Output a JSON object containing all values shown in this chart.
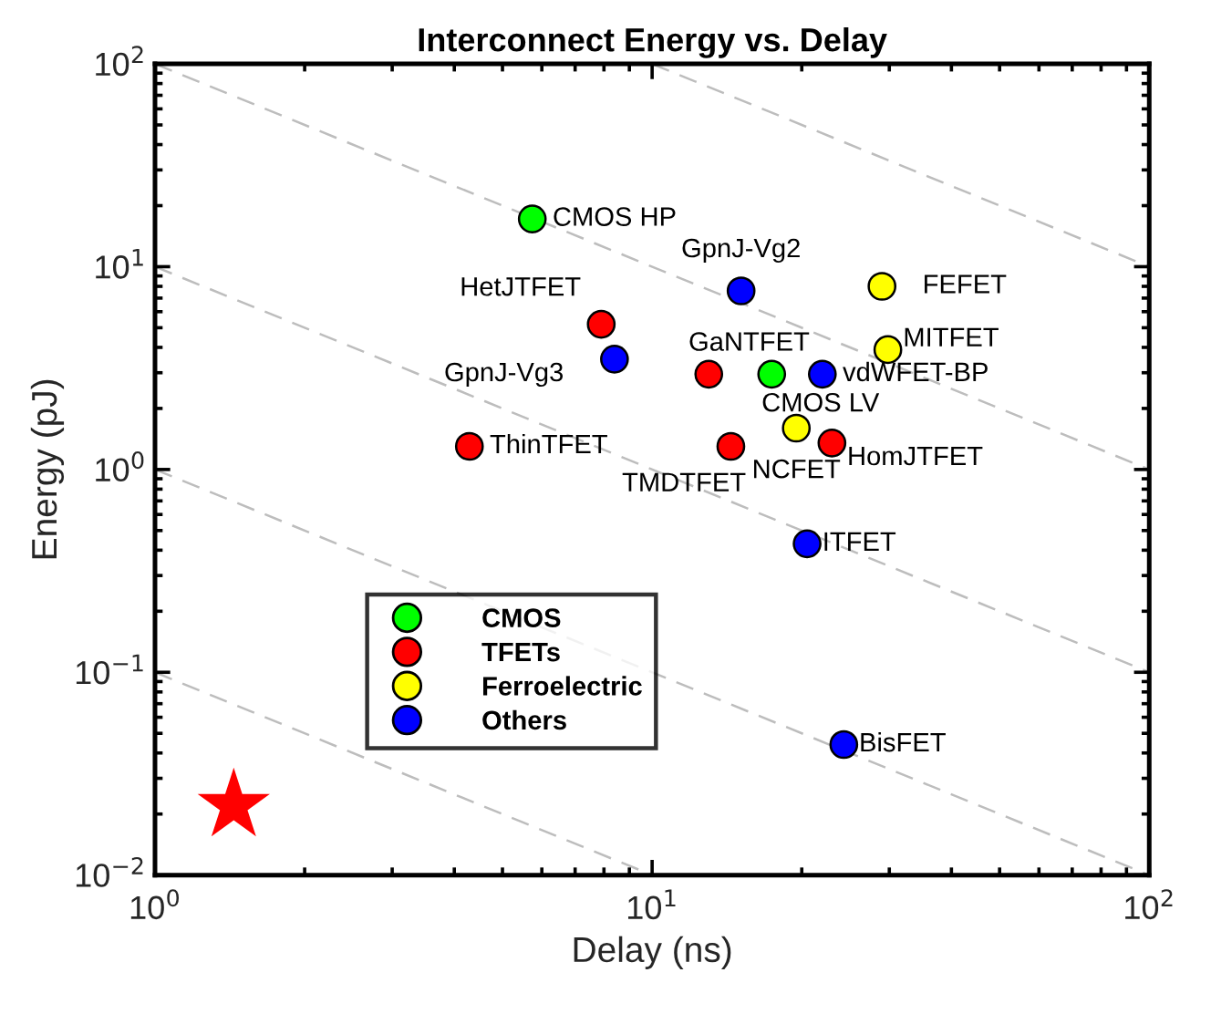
{
  "chart_data": {
    "type": "scatter",
    "title": "Interconnect Energy vs. Delay",
    "xlabel": "Delay (ns)",
    "ylabel": "Energy (pJ)",
    "log": "xy",
    "xlim": [
      1,
      100
    ],
    "ylim": [
      0.01,
      100
    ],
    "xticks": [
      {
        "value": 1,
        "label": "10$^{0}$"
      },
      {
        "value": 10,
        "label": "10$^{1}$"
      },
      {
        "value": 100,
        "label": "10$^{2}$"
      }
    ],
    "yticks": [
      {
        "value": 0.01,
        "label": "10$^{−2}$"
      },
      {
        "value": 0.1,
        "label": "10$^{−1}$"
      },
      {
        "value": 1,
        "label": "10$^{0}$"
      },
      {
        "value": 10,
        "label": "10$^{1}$"
      },
      {
        "value": 100,
        "label": "10$^{2}$"
      }
    ],
    "grid": false,
    "legend": "bottom left",
    "marker": "circle",
    "series": [
      {
        "type": "line",
        "color": "#bdbdbd",
        "line_style": "dashed",
        "marker": "none",
        "x": [
          10,
          100
        ],
        "values": [
          100,
          10
        ]
      },
      {
        "type": "line",
        "color": "#bdbdbd",
        "line_style": "dashed",
        "marker": "none",
        "x": [
          1,
          100
        ],
        "values": [
          100,
          1
        ]
      },
      {
        "type": "line",
        "color": "#bdbdbd",
        "line_style": "dashed",
        "marker": "none",
        "x": [
          1,
          100
        ],
        "values": [
          10,
          0.1
        ]
      },
      {
        "type": "line",
        "color": "#bdbdbd",
        "line_style": "dashed",
        "marker": "none",
        "x": [
          1,
          100
        ],
        "values": [
          1,
          0.01
        ]
      },
      {
        "type": "line",
        "color": "#bdbdbd",
        "line_style": "dashed",
        "marker": "none",
        "x": [
          1,
          10
        ],
        "values": [
          0.1,
          0.01
        ]
      },
      {
        "name": "CMOS",
        "color": "#00ff00",
        "x": [
          5.74,
          17.4
        ],
        "values": [
          17.2,
          2.95
        ]
      },
      {
        "name": "TFETs",
        "color": "#ff0000",
        "x": [
          7.9,
          13.0,
          4.29,
          14.4,
          23.0
        ],
        "values": [
          5.2,
          2.95,
          1.3,
          1.3,
          1.35
        ]
      },
      {
        "name": "Ferroelectric",
        "color": "#ffff00",
        "x": [
          29.0,
          29.8,
          19.5
        ],
        "values": [
          8.0,
          3.9,
          1.6
        ]
      },
      {
        "name": "Others",
        "color": "#0000ff",
        "x": [
          15.1,
          8.4,
          22.0,
          20.5,
          24.3
        ],
        "values": [
          7.6,
          3.5,
          2.95,
          0.43,
          0.044
        ]
      },
      {
        "color": "#ff0000",
        "marker": "star",
        "x": [
          1.44
        ],
        "values": [
          0.022
        ]
      }
    ],
    "annotations": [
      {
        "text": "CMOS HP",
        "x": 5.74,
        "y": 17.2
      },
      {
        "text": "CMOS LV",
        "x": 17.4,
        "y": 2.95
      },
      {
        "text": "HetJTFET",
        "x": 7.9,
        "y": 5.2
      },
      {
        "text": "GaNTFET",
        "x": 13.0,
        "y": 2.95
      },
      {
        "text": "ThinTFET",
        "x": 4.29,
        "y": 1.3
      },
      {
        "text": "TMDTFET",
        "x": 14.4,
        "y": 1.3
      },
      {
        "text": "HomJTFET",
        "x": 23.0,
        "y": 1.35
      },
      {
        "text": "FEFET",
        "x": 29.0,
        "y": 8.0
      },
      {
        "text": "MITFET",
        "x": 29.8,
        "y": 3.9
      },
      {
        "text": "NCFET",
        "x": 19.5,
        "y": 1.6
      },
      {
        "text": "GpnJ-Vg2",
        "x": 15.1,
        "y": 7.6
      },
      {
        "text": "GpnJ-Vg3",
        "x": 8.4,
        "y": 3.5
      },
      {
        "text": "vdWFET-BP",
        "x": 22.0,
        "y": 2.95
      },
      {
        "text": "ITFET",
        "x": 20.5,
        "y": 0.43
      },
      {
        "text": "BisFET",
        "x": 24.3,
        "y": 0.044
      }
    ]
  }
}
